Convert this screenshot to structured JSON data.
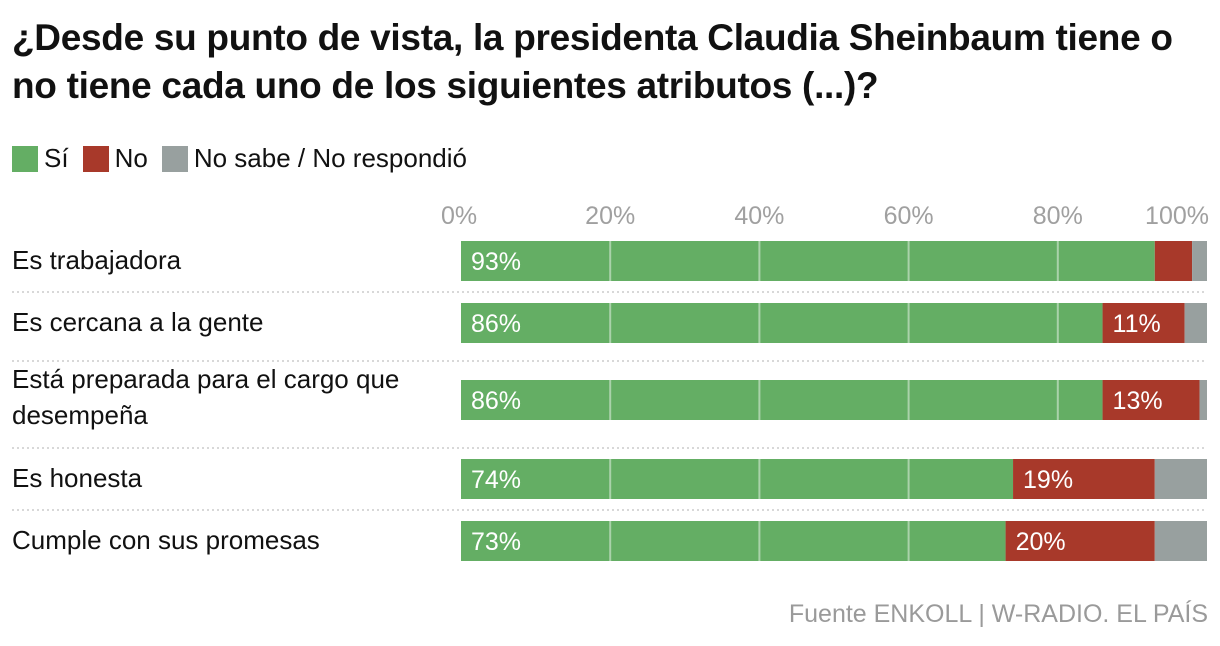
{
  "title": "¿Desde su punto de vista, la presidenta Claudia Sheinbaum tiene o no tiene cada uno de los siguientes atributos (...)?",
  "legend": [
    {
      "label": "Sí",
      "color": "#64ae64"
    },
    {
      "label": "No",
      "color": "#a8392a"
    },
    {
      "label": "No sabe / No respondió",
      "color": "#98a09f"
    }
  ],
  "source": "Fuente ENKOLL | W-RADIO. EL PAÍS",
  "chart_data": {
    "type": "bar",
    "orientation": "horizontal-stacked",
    "title": "¿Desde su punto de vista, la presidenta Claudia Sheinbaum tiene o no tiene cada uno de los siguientes atributos (...)?",
    "categories": [
      "Es trabajadora",
      "Es cercana a la gente",
      "Está preparada para el cargo que desempeña",
      "Es honesta",
      "Cumple con sus promesas"
    ],
    "series": [
      {
        "name": "Sí",
        "color": "#64ae64",
        "values": [
          93,
          86,
          86,
          74,
          73
        ],
        "labels": [
          "93%",
          "86%",
          "86%",
          "74%",
          "73%"
        ]
      },
      {
        "name": "No",
        "color": "#a8392a",
        "values": [
          5,
          11,
          13,
          19,
          20
        ],
        "labels": [
          "",
          "11%",
          "13%",
          "19%",
          "20%"
        ]
      },
      {
        "name": "No sabe / No respondió",
        "color": "#98a09f",
        "values": [
          2,
          3,
          1,
          7,
          7
        ],
        "labels": [
          "",
          "",
          "",
          "",
          ""
        ]
      }
    ],
    "xticks": [
      "0%",
      "20%",
      "40%",
      "60%",
      "80%",
      "100%"
    ],
    "xlim": [
      0,
      100
    ],
    "legend_position": "top-left"
  }
}
